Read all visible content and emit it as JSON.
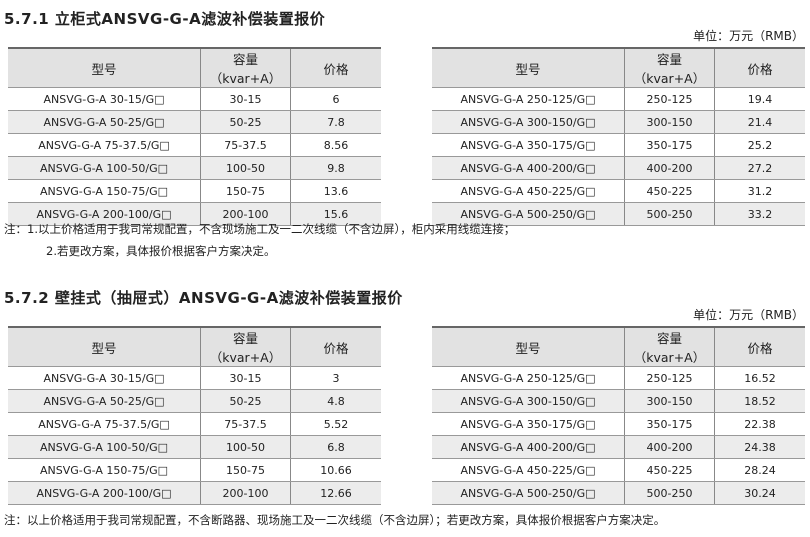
{
  "s1": {
    "title": "5.7.1 立柜式ANSVG-G-A滤波补偿装置报价",
    "unit": "单位：万元（RMB）",
    "headers": [
      "型号",
      "容量（kvar+A）",
      "价格"
    ],
    "left": [
      [
        "ANSVG-G-A 30-15/G□",
        "30-15",
        "6"
      ],
      [
        "ANSVG-G-A 50-25/G□",
        "50-25",
        "7.8"
      ],
      [
        "ANSVG-G-A 75-37.5/G□",
        "75-37.5",
        "8.56"
      ],
      [
        "ANSVG-G-A 100-50/G□",
        "100-50",
        "9.8"
      ],
      [
        "ANSVG-G-A 150-75/G□",
        "150-75",
        "13.6"
      ],
      [
        "ANSVG-G-A 200-100/G□",
        "200-100",
        "15.6"
      ]
    ],
    "right": [
      [
        "ANSVG-G-A 250-125/G□",
        "250-125",
        "19.4"
      ],
      [
        "ANSVG-G-A 300-150/G□",
        "300-150",
        "21.4"
      ],
      [
        "ANSVG-G-A 350-175/G□",
        "350-175",
        "25.2"
      ],
      [
        "ANSVG-G-A 400-200/G□",
        "400-200",
        "27.2"
      ],
      [
        "ANSVG-G-A 450-225/G□",
        "450-225",
        "31.2"
      ],
      [
        "ANSVG-G-A 500-250/G□",
        "500-250",
        "33.2"
      ]
    ],
    "note1": "注：1.以上价格适用于我司常规配置，不含现场施工及一二次线缆（不含边屏），柜内采用线缆连接；",
    "note2": "2.若更改方案，具体报价根据客户方案决定。"
  },
  "s2": {
    "title": "5.7.2 壁挂式（抽屉式）ANSVG-G-A滤波补偿装置报价",
    "unit": "单位：万元（RMB）",
    "headers": [
      "型号",
      "容量（kvar+A）",
      "价格"
    ],
    "left": [
      [
        "ANSVG-G-A 30-15/G□",
        "30-15",
        "3"
      ],
      [
        "ANSVG-G-A 50-25/G□",
        "50-25",
        "4.8"
      ],
      [
        "ANSVG-G-A 75-37.5/G□",
        "75-37.5",
        "5.52"
      ],
      [
        "ANSVG-G-A 100-50/G□",
        "100-50",
        "6.8"
      ],
      [
        "ANSVG-G-A 150-75/G□",
        "150-75",
        "10.66"
      ],
      [
        "ANSVG-G-A 200-100/G□",
        "200-100",
        "12.66"
      ]
    ],
    "right": [
      [
        "ANSVG-G-A 250-125/G□",
        "250-125",
        "16.52"
      ],
      [
        "ANSVG-G-A 300-150/G□",
        "300-150",
        "18.52"
      ],
      [
        "ANSVG-G-A 350-175/G□",
        "350-175",
        "22.38"
      ],
      [
        "ANSVG-G-A 400-200/G□",
        "400-200",
        "24.38"
      ],
      [
        "ANSVG-G-A 450-225/G□",
        "450-225",
        "28.24"
      ],
      [
        "ANSVG-G-A 500-250/G□",
        "500-250",
        "30.24"
      ]
    ],
    "note": "注：以上价格适用于我司常规配置，不含断路器、现场施工及一二次线缆（不含边屏）；若更改方案，具体报价根据客户方案决定。"
  }
}
